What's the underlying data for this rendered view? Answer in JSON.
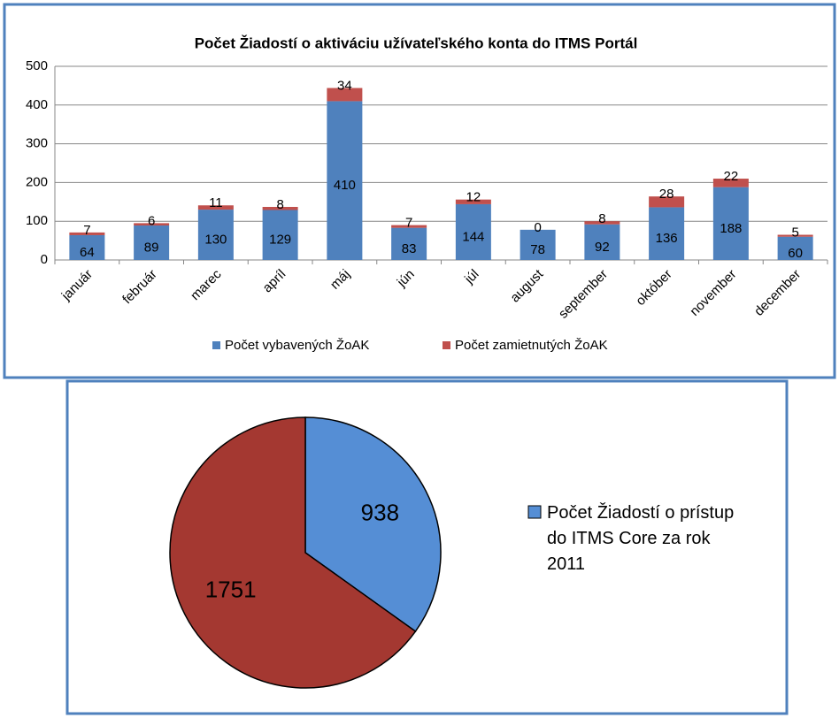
{
  "chart_data": [
    {
      "type": "bar",
      "stacked": true,
      "title": "Počet Žiadostí o aktiváciu užívateľského konta do ITMS Portál",
      "categories": [
        "január",
        "február",
        "marec",
        "apríl",
        "máj",
        "jún",
        "júl",
        "august",
        "september",
        "október",
        "november",
        "december"
      ],
      "series": [
        {
          "name": "Počet vybavených ŽoAK",
          "color": "#4f81bd",
          "values": [
            64,
            89,
            130,
            129,
            410,
            83,
            144,
            78,
            92,
            136,
            188,
            60
          ]
        },
        {
          "name": "Počet zamietnutých ŽoAK",
          "color": "#c0504d",
          "values": [
            7,
            6,
            11,
            8,
            34,
            7,
            12,
            0,
            8,
            28,
            22,
            5
          ]
        }
      ],
      "ylim": [
        0,
        500
      ],
      "yticks": [
        0,
        100,
        200,
        300,
        400,
        500
      ],
      "grid": true,
      "legend": "bottom"
    },
    {
      "type": "pie",
      "categories": [
        "Počet Žiadostí o prístup do ITMS Core za rok 2011",
        null
      ],
      "values": [
        938,
        1751
      ],
      "colors": [
        "#558ed5",
        "#a43831"
      ],
      "legend": "right"
    }
  ]
}
